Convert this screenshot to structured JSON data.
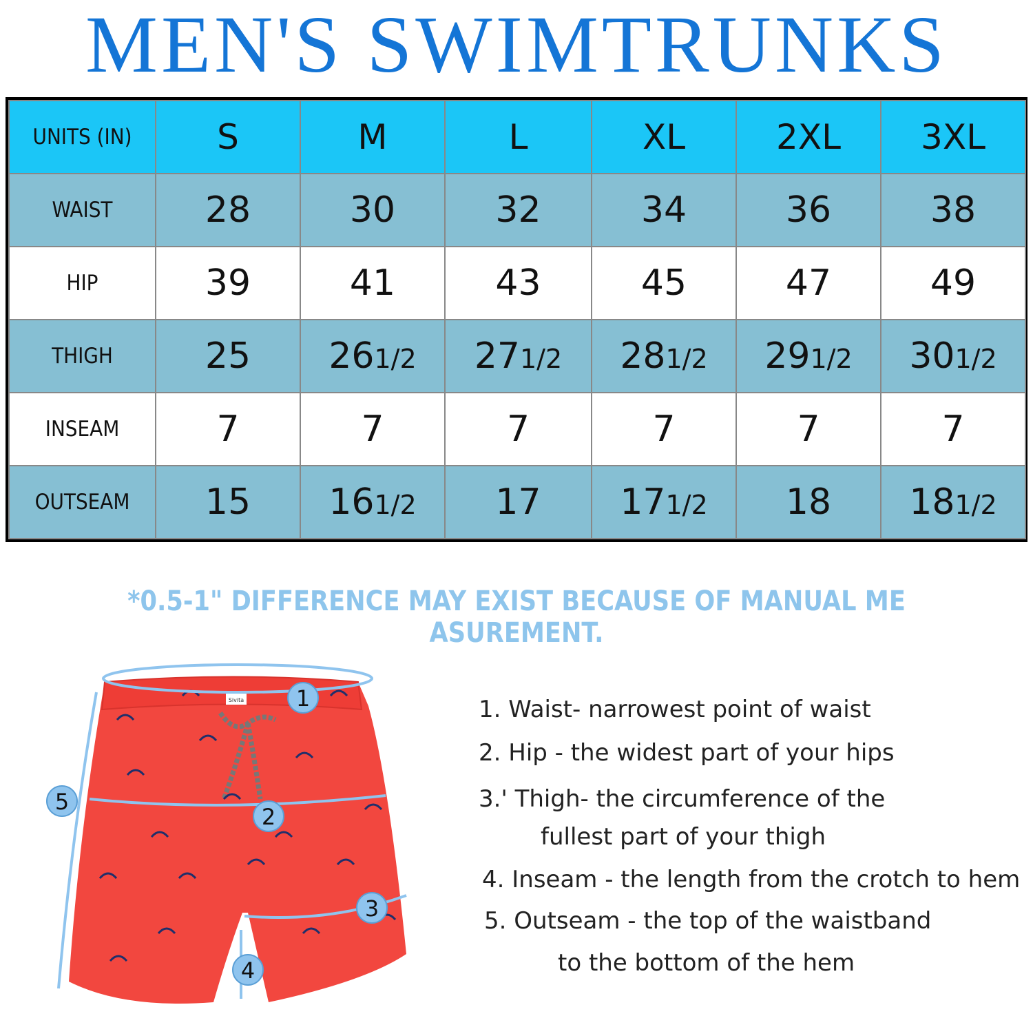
{
  "title": "MEN'S SWIMTRUNKS",
  "table": {
    "header_label": "UNITS (IN)",
    "sizes": [
      "S",
      "M",
      "L",
      "XL",
      "2XL",
      "3XL"
    ],
    "rows": [
      {
        "label": "WAIST",
        "values": [
          [
            "28",
            ""
          ],
          [
            "30",
            ""
          ],
          [
            "32",
            ""
          ],
          [
            "34",
            ""
          ],
          [
            "36",
            ""
          ],
          [
            "38",
            ""
          ]
        ]
      },
      {
        "label": "HIP",
        "values": [
          [
            "39",
            ""
          ],
          [
            "41",
            ""
          ],
          [
            "43",
            ""
          ],
          [
            "45",
            ""
          ],
          [
            "47",
            ""
          ],
          [
            "49",
            ""
          ]
        ]
      },
      {
        "label": "THIGH",
        "values": [
          [
            "25",
            ""
          ],
          [
            "26",
            "1/2"
          ],
          [
            "27",
            "1/2"
          ],
          [
            "28",
            "1/2"
          ],
          [
            "29",
            "1/2"
          ],
          [
            "30",
            "1/2"
          ]
        ]
      },
      {
        "label": "INSEAM",
        "values": [
          [
            "7",
            ""
          ],
          [
            "7",
            ""
          ],
          [
            "7",
            ""
          ],
          [
            "7",
            ""
          ],
          [
            "7",
            ""
          ],
          [
            "7",
            ""
          ]
        ]
      },
      {
        "label": "OUTSEAM",
        "values": [
          [
            "15",
            ""
          ],
          [
            "16",
            "1/2"
          ],
          [
            "17",
            ""
          ],
          [
            "17",
            "1/2"
          ],
          [
            "18",
            ""
          ],
          [
            "18",
            "1/2"
          ]
        ]
      }
    ]
  },
  "note": "*0.5-1\" DIFFERENCE MAY EXIST BECAUSE OF MANUAL ME ASUREMENT.",
  "diagram": {
    "markers": [
      "1",
      "2",
      "3",
      "4",
      "5"
    ],
    "tag_text": "Sivita"
  },
  "legend": {
    "l1": "1. Waist- narrowest point of waist",
    "l2": "2. Hip - the widest part of your hips",
    "l3a": "3.' Thigh- the circumference of the",
    "l3b": "fullest part of your thigh",
    "l4": "4. Inseam - the length from the crotch to hem",
    "l5a": "5. Outseam - the top of the waistband",
    "l5b": "to the bottom of the hem"
  },
  "colors": {
    "title": "#1475d6",
    "header_row": "#1bc6f7",
    "shaded_row": "#86bfd3",
    "note": "#8ec5ec",
    "shorts": "#f2473f",
    "marker": "#8fc4ee"
  }
}
